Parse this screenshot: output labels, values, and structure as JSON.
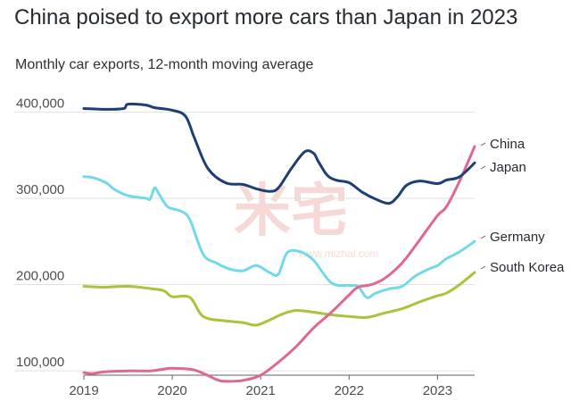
{
  "header": {
    "title": "China poised to export more cars than Japan in 2023",
    "subtitle": "Monthly car exports, 12-month moving average"
  },
  "watermark": {
    "text": "米宅",
    "url": "www.mizhai.com"
  },
  "chart_data": {
    "type": "line",
    "title": "China poised to export more cars than Japan in 2023",
    "subtitle": "Monthly car exports, 12-month moving average",
    "xlabel": "",
    "ylabel": "",
    "xlim": [
      2019.0,
      2023.42
    ],
    "ylim": [
      95000,
      420000
    ],
    "x_ticks": [
      2019,
      2020,
      2021,
      2022,
      2023
    ],
    "x_tick_labels": [
      "2019",
      "2020",
      "2021",
      "2022",
      "2023"
    ],
    "y_ticks": [
      100000,
      200000,
      300000,
      400000
    ],
    "y_tick_labels": [
      "100,000",
      "200,000",
      "300,000",
      "400,000"
    ],
    "grid": "horizontal",
    "legend": "direct labels at right end of lines",
    "series": [
      {
        "name": "China",
        "label": "China",
        "color": "#e0678f",
        "x": [
          2019.0,
          2019.1,
          2019.25,
          2019.5,
          2019.75,
          2019.9,
          2020.0,
          2020.25,
          2020.5,
          2020.6,
          2020.8,
          2021.0,
          2021.2,
          2021.4,
          2021.6,
          2021.8,
          2022.0,
          2022.1,
          2022.25,
          2022.4,
          2022.6,
          2022.8,
          2023.0,
          2023.1,
          2023.25,
          2023.42
        ],
        "values": [
          98000,
          97000,
          99000,
          100000,
          100000,
          102000,
          103000,
          101000,
          90000,
          88000,
          89000,
          95000,
          110000,
          128000,
          150000,
          168000,
          188000,
          197000,
          200000,
          207000,
          225000,
          252000,
          280000,
          290000,
          320000,
          360000
        ]
      },
      {
        "name": "Japan",
        "label": "Japan",
        "color": "#1d3f73",
        "x": [
          2019.0,
          2019.25,
          2019.45,
          2019.5,
          2019.7,
          2019.8,
          2020.0,
          2020.15,
          2020.25,
          2020.4,
          2020.6,
          2020.8,
          2020.95,
          2021.1,
          2021.2,
          2021.35,
          2021.5,
          2021.6,
          2021.65,
          2021.75,
          2021.85,
          2022.0,
          2022.15,
          2022.3,
          2022.45,
          2022.55,
          2022.65,
          2022.8,
          2023.0,
          2023.1,
          2023.25,
          2023.42
        ],
        "values": [
          404000,
          403000,
          404000,
          409000,
          408000,
          405000,
          402000,
          395000,
          370000,
          335000,
          318000,
          316000,
          311000,
          308000,
          312000,
          335000,
          354000,
          352000,
          343000,
          327000,
          321000,
          318000,
          307000,
          299000,
          294000,
          302000,
          315000,
          320000,
          317000,
          321000,
          325000,
          341000
        ]
      },
      {
        "name": "Germany",
        "label": "Germany",
        "color": "#71d9e8",
        "x": [
          2019.0,
          2019.1,
          2019.25,
          2019.35,
          2019.5,
          2019.7,
          2019.75,
          2019.8,
          2019.85,
          2019.95,
          2020.1,
          2020.2,
          2020.35,
          2020.5,
          2020.65,
          2020.8,
          2020.95,
          2021.1,
          2021.2,
          2021.3,
          2021.45,
          2021.6,
          2021.8,
          2022.0,
          2022.1,
          2022.2,
          2022.3,
          2022.45,
          2022.6,
          2022.75,
          2022.9,
          2023.0,
          2023.1,
          2023.25,
          2023.42
        ],
        "values": [
          325000,
          324000,
          318000,
          310000,
          303000,
          300000,
          299000,
          312000,
          305000,
          290000,
          285000,
          275000,
          235000,
          225000,
          218000,
          216000,
          222000,
          214000,
          212000,
          237000,
          238000,
          228000,
          202000,
          199000,
          198000,
          185000,
          190000,
          195000,
          198000,
          210000,
          218000,
          222000,
          230000,
          238000,
          250000
        ]
      },
      {
        "name": "South Korea",
        "label": "South Korea",
        "color": "#a9c43a",
        "x": [
          2019.0,
          2019.2,
          2019.5,
          2019.7,
          2019.9,
          2020.0,
          2020.2,
          2020.35,
          2020.6,
          2020.8,
          2020.95,
          2021.1,
          2021.25,
          2021.4,
          2021.6,
          2021.8,
          2022.0,
          2022.2,
          2022.4,
          2022.6,
          2022.8,
          2023.0,
          2023.1,
          2023.25,
          2023.42
        ],
        "values": [
          198000,
          197000,
          198000,
          196000,
          193000,
          186000,
          185000,
          163000,
          158000,
          156000,
          153000,
          159000,
          166000,
          170000,
          168000,
          165000,
          163000,
          162000,
          167000,
          172000,
          180000,
          187000,
          190000,
          200000,
          214000
        ]
      }
    ]
  }
}
